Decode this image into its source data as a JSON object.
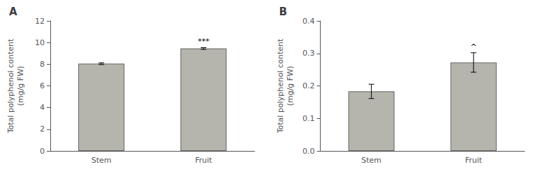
{
  "chart_data": [
    {
      "type": "bar",
      "title": "A",
      "categories": [
        "Stem",
        "Fruit"
      ],
      "values": [
        8.05,
        9.45
      ],
      "errors": [
        0.08,
        0.08
      ],
      "ylabel": "Total polyphenol content\n(mg/g FW)",
      "color": "#b5b5ad",
      "ylim": [
        0,
        12
      ],
      "yticks": [
        0,
        2,
        4,
        6,
        8,
        10,
        12
      ],
      "annotations": [
        {
          "category": "Fruit",
          "text": "***"
        }
      ],
      "grid": false
    },
    {
      "type": "bar",
      "title": "B",
      "categories": [
        "Stem",
        "Fruit"
      ],
      "values": [
        0.183,
        0.272
      ],
      "errors": [
        0.022,
        0.03
      ],
      "ylabel": "Total polyphenol content\n(mg/g FW)",
      "color": "#b5b5ad",
      "ylim": [
        0,
        0.4
      ],
      "yticks": [
        {
          "value": 0,
          "label": "0.0"
        },
        0.1,
        0.2,
        0.3,
        0.4
      ],
      "annotations": [
        {
          "category": "Fruit",
          "text": "^"
        }
      ],
      "grid": false
    }
  ]
}
